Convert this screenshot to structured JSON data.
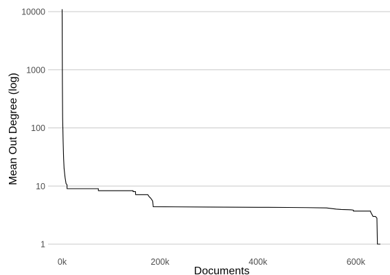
{
  "chart_data": {
    "type": "line",
    "title": "",
    "xlabel": "Documents",
    "ylabel": "Mean Out Degree (log)",
    "y_scale": "log10",
    "ylim": [
      1,
      10000
    ],
    "xlim": [
      0,
      650000
    ],
    "grid": {
      "horizontal": true,
      "vertical": false
    },
    "legend": "none",
    "line_color": "#000000",
    "x_ticks": [
      {
        "value": 0,
        "label": "0k"
      },
      {
        "value": 200000,
        "label": "200k"
      },
      {
        "value": 400000,
        "label": "400k"
      },
      {
        "value": 600000,
        "label": "600k"
      }
    ],
    "y_ticks": [
      {
        "value": 1,
        "label": "1"
      },
      {
        "value": 10,
        "label": "10"
      },
      {
        "value": 100,
        "label": "100"
      },
      {
        "value": 1000,
        "label": "1000"
      },
      {
        "value": 10000,
        "label": "10000"
      }
    ],
    "series": [
      {
        "x": [
          0,
          0,
          200,
          500,
          1000,
          2000,
          3000,
          4000,
          6000,
          8000,
          10000,
          10000,
          74000,
          74000,
          145000,
          145000,
          150000,
          150000,
          175000,
          178000,
          180000,
          182000,
          185000,
          186000,
          186000,
          300000,
          400000,
          420000,
          460000,
          500000,
          540000,
          550000,
          560000,
          570000,
          590000,
          595000,
          595000,
          630000,
          630000,
          635000,
          640000,
          643000,
          644000,
          650000
        ],
        "y": [
          11000,
          10000,
          3000,
          600,
          150,
          60,
          30,
          20,
          14,
          11,
          10.5,
          9,
          9,
          8.3,
          8.3,
          8,
          8,
          7.1,
          7.1,
          6.5,
          6.3,
          6,
          5.5,
          4.5,
          4.4,
          4.35,
          4.3,
          4.3,
          4.28,
          4.25,
          4.2,
          4.1,
          4.0,
          3.95,
          3.9,
          3.85,
          3.7,
          3.7,
          3.6,
          3.0,
          3.0,
          2.8,
          1.0,
          1.0
        ]
      }
    ]
  }
}
